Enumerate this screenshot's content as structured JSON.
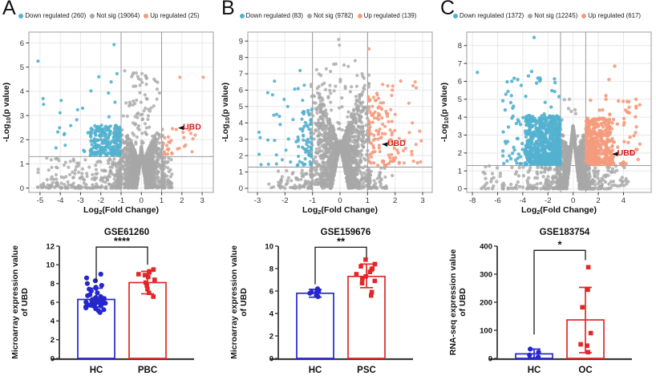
{
  "panels": [
    {
      "letter": "A"
    },
    {
      "letter": "B"
    },
    {
      "letter": "C"
    }
  ],
  "colors": {
    "down": "#53b1cf",
    "not_sig": "#a7a7a7",
    "up": "#f59b7d",
    "hc_bar": "#2626cf",
    "disease_bar": "#e12727",
    "annotation_red": "#d31f1f",
    "axis": "#333333",
    "grid": "#e8e8e8",
    "panel_border": "#9c9c9c",
    "threshold_line": "#8f8f8f",
    "bracket": "#1a1a1a"
  },
  "chart_data": [
    {
      "id": "volcano-A",
      "type": "scatter",
      "subtype": "volcano",
      "legend": [
        {
          "label": "Down regulated (260)",
          "count": 260,
          "color": "#53b1cf"
        },
        {
          "label": "Not sig (19064)",
          "count": 19064,
          "color": "#a7a7a7"
        },
        {
          "label": "Up regulated (25)",
          "count": 25,
          "color": "#f59b7d"
        }
      ],
      "xlabel": {
        "pre": "Log",
        "sub": "2",
        "post": "(Fold Change)"
      },
      "ylabel": {
        "pre": "-Log",
        "sub": "10",
        "post": "(p value)"
      },
      "xlim": [
        -5.55,
        3.55
      ],
      "ylim": [
        -0.18,
        6.45
      ],
      "xticks": [
        -5,
        -4,
        -3,
        -2,
        -1,
        0,
        1,
        2,
        3
      ],
      "yticks": [
        0,
        1,
        2,
        3,
        4,
        5,
        6
      ],
      "fc_threshold": [
        -1,
        1
      ],
      "p_threshold": 1.3,
      "annotation": {
        "text": "UBD",
        "point": [
          1.72,
          2.42
        ],
        "label_pos": [
          2.05,
          2.62
        ]
      },
      "seed": 7,
      "dot_r": 2.1,
      "render_hint": {
        "grayCentral": {
          "n": 1500,
          "sigma": 0.45,
          "clip": 1.04,
          "top": 2.7,
          "pow": 1.25,
          "notchH": 1.5,
          "notchW": 0.22,
          "tallP": 0.05,
          "tallMax": 4.85
        },
        "grayOuter": {
          "nL": 260,
          "spanL": 4.1,
          "nR": 80,
          "spanR": 0.5,
          "ymax": 1.25
        },
        "blueBlob": {
          "n": 240,
          "w": 1.5,
          "h": 1.25
        },
        "blueScatter": {
          "n": 26,
          "xmin": -4.9,
          "top": 4.6
        },
        "orangeBlob": {
          "n": 12,
          "w": 0.55,
          "h": 0.85
        },
        "orangeScatter": {
          "n": 9,
          "xmax": 3.1,
          "top": 2.7
        },
        "blueExtras": [
          [
            -5.1,
            5.25
          ],
          [
            -1.35,
            5.93
          ],
          [
            -4.85,
            3.7
          ],
          [
            -1.2,
            4.73
          ],
          [
            -2.1,
            4.6
          ],
          [
            -1.62,
            3.93
          ],
          [
            -1.3,
            3.55
          ],
          [
            -2.9,
            3.3
          ]
        ],
        "orangeExtras": [
          [
            1.9,
            4.58
          ],
          [
            3.05,
            4.58
          ],
          [
            1.72,
            2.42
          ],
          [
            2.35,
            2.4
          ],
          [
            1.35,
            1.9
          ],
          [
            1.78,
            1.62
          ],
          [
            2.12,
            1.72
          ],
          [
            1.15,
            2.08
          ],
          [
            1.5,
            1.45
          ],
          [
            2.5,
            1.5
          ]
        ],
        "grayExtras": [
          [
            -0.82,
            4.85
          ],
          [
            0.63,
            4.5
          ],
          [
            0.7,
            4.42
          ],
          [
            0.35,
            3.25
          ],
          [
            0.42,
            3.18
          ],
          [
            -0.55,
            3.45
          ],
          [
            -0.6,
            3.4
          ]
        ]
      }
    },
    {
      "id": "bar-A",
      "type": "bar",
      "title": "GSE61260",
      "sig": "****",
      "ylabel": [
        "Microarray expression value",
        "of UBD"
      ],
      "ymax": 12,
      "yticks": [
        0,
        2,
        4,
        6,
        8,
        10,
        12
      ],
      "groups": [
        {
          "label": "HC",
          "color": "#2626cf",
          "marker": "circle",
          "mean": 6.3,
          "err_lo": 5.5,
          "err_hi": 7.5,
          "points": [
            9.0,
            8.6,
            8.3,
            8.0,
            7.8,
            7.6,
            7.5,
            7.4,
            7.2,
            7.0,
            6.8,
            6.7,
            6.6,
            6.5,
            6.4,
            6.4,
            6.3,
            6.3,
            6.2,
            6.2,
            6.1,
            6.1,
            6.0,
            6.0,
            6.0,
            5.9,
            5.9,
            5.8,
            5.8,
            5.7,
            5.7,
            5.6,
            5.6,
            5.5,
            5.4,
            5.3,
            5.2,
            5.1,
            4.9
          ]
        },
        {
          "label": "PBC",
          "color": "#e12727",
          "marker": "square",
          "mean": 8.1,
          "err_lo": 6.9,
          "err_hi": 9.3,
          "points": [
            9.5,
            9.3,
            9.2,
            9.0,
            8.9,
            8.7,
            8.4,
            8.1,
            7.8,
            7.4,
            7.0,
            6.6
          ]
        }
      ],
      "bracket": {
        "y": 11.9,
        "legs": [
          8.1,
          10.0
        ]
      },
      "seed": 3
    },
    {
      "id": "volcano-B",
      "type": "scatter",
      "subtype": "volcano",
      "legend": [
        {
          "label": "Down regulated (83)",
          "count": 83,
          "color": "#53b1cf"
        },
        {
          "label": "Not sig (9782)",
          "count": 9782,
          "color": "#a7a7a7"
        },
        {
          "label": "Up regulated (139)",
          "count": 139,
          "color": "#f59b7d"
        }
      ],
      "xlabel": {
        "pre": "Log",
        "sub": "2",
        "post": "(Fold Change)"
      },
      "ylabel": {
        "pre": "-Log",
        "sub": "10",
        "post": "(p value)"
      },
      "xlim": [
        -3.35,
        3.35
      ],
      "ylim": [
        -0.25,
        9.55
      ],
      "xticks": [
        -3,
        -2,
        -1,
        0,
        1,
        2,
        3
      ],
      "yticks": [
        0,
        1,
        2,
        3,
        4,
        5,
        6,
        7,
        8,
        9
      ],
      "fc_threshold": [
        -1,
        1
      ],
      "p_threshold": 1.3,
      "annotation": {
        "text": "UBD",
        "point": [
          1.45,
          2.6
        ],
        "label_pos": [
          1.72,
          2.88
        ]
      },
      "seed": 11,
      "dot_r": 2.1,
      "render_hint": {
        "grayCentral": {
          "n": 1700,
          "sigma": 0.5,
          "clip": 1.05,
          "top": 7.0,
          "pow": 1.35,
          "notchH": 2.7,
          "notchW": 0.3,
          "tallP": 0.05,
          "tallMax": 7.8
        },
        "grayOuter": {
          "nL": 70,
          "spanL": 1.6,
          "nR": 60,
          "spanR": 0.9,
          "ymax": 1.25
        },
        "blueBlob": {
          "n": 55,
          "w": 0.5,
          "h": 3.6
        },
        "blueScatter": {
          "n": 28,
          "xmin": -2.95,
          "top": 6.6
        },
        "orangeBlob": {
          "n": 95,
          "w": 1.0,
          "h": 4.5
        },
        "orangeScatter": {
          "n": 32,
          "xmax": 2.95,
          "top": 6.9
        },
        "blueExtras": [
          [
            -2.38,
            6.55
          ],
          [
            -1.45,
            7.2
          ],
          [
            -2.9,
            3.1
          ],
          [
            -2.62,
            2.95
          ],
          [
            -1.9,
            5.0
          ],
          [
            -2.2,
            4.4
          ],
          [
            -1.3,
            6.3
          ]
        ],
        "orangeExtras": [
          [
            1.05,
            8.52
          ],
          [
            2.73,
            6.5
          ],
          [
            2.15,
            3.05
          ],
          [
            2.95,
            2.9
          ],
          [
            1.42,
            2.62
          ],
          [
            2.3,
            2.3
          ],
          [
            2.6,
            2.25
          ],
          [
            1.9,
            6.0
          ],
          [
            1.55,
            6.35
          ]
        ],
        "grayExtras": [
          [
            -0.05,
            9.1
          ],
          [
            -0.02,
            8.75
          ],
          [
            0.55,
            7.8
          ],
          [
            -0.5,
            7.3
          ],
          [
            0.3,
            7.45
          ],
          [
            -0.85,
            7.25
          ],
          [
            0.8,
            7.0
          ],
          [
            -0.15,
            7.6
          ]
        ]
      }
    },
    {
      "id": "bar-B",
      "type": "bar",
      "title": "GSE159676",
      "sig": "**",
      "ylabel": [
        "Microarray expression value",
        "of UBD"
      ],
      "ymax": 10,
      "yticks": [
        0,
        2,
        4,
        6,
        8,
        10
      ],
      "groups": [
        {
          "label": "HC",
          "color": "#2626cf",
          "marker": "circle",
          "mean": 5.8,
          "err_lo": 5.45,
          "err_hi": 6.15,
          "points": [
            6.2,
            6.0,
            5.9,
            5.8,
            5.8,
            5.6,
            5.5
          ]
        },
        {
          "label": "PSC",
          "color": "#e12727",
          "marker": "square",
          "mean": 7.3,
          "err_lo": 6.3,
          "err_hi": 8.4,
          "points": [
            8.8,
            8.4,
            8.2,
            8.0,
            7.9,
            7.7,
            7.5,
            7.3,
            7.1,
            6.9,
            6.7,
            5.9,
            5.6
          ]
        }
      ],
      "bracket": {
        "y": 9.9,
        "legs": [
          6.6,
          9.0
        ]
      },
      "seed": 5
    },
    {
      "id": "volcano-C",
      "type": "scatter",
      "subtype": "volcano",
      "legend": [
        {
          "label": "Down regulated (1372)",
          "count": 1372,
          "color": "#53b1cf"
        },
        {
          "label": "Not sig (12245)",
          "count": 12245,
          "color": "#a7a7a7"
        },
        {
          "label": "Up regulated (617)",
          "count": 617,
          "color": "#f59b7d"
        }
      ],
      "xlabel": {
        "pre": "Log",
        "sub": "2",
        "post": "(Fold Change)"
      },
      "ylabel": {
        "pre": "-Log",
        "sub": "10",
        "post": "(p value)"
      },
      "xlim": [
        -8.45,
        6.2
      ],
      "ylim": [
        -0.2,
        8.75
      ],
      "xticks": [
        -8,
        -6,
        -4,
        -2,
        0,
        2,
        4
      ],
      "yticks": [
        0,
        1,
        2,
        3,
        4,
        5,
        6,
        7,
        8
      ],
      "fc_threshold": [
        -1,
        1
      ],
      "p_threshold": 1.3,
      "annotation": {
        "text": "UBD",
        "point": [
          2.95,
          1.85
        ],
        "label_pos": [
          3.5,
          2.12
        ]
      },
      "seed": 23,
      "dot_r": 2.2,
      "render_hint": {
        "grayCentral": {
          "n": 1500,
          "sigma": 0.55,
          "clip": 1.28,
          "top": 3.8,
          "pow": 1.3,
          "notchH": 3.3,
          "notchW": 0.5,
          "tallP": 0.012,
          "tallMax": 5.0
        },
        "grayOuter": {
          "nL": 160,
          "spanL": 6.3,
          "nR": 120,
          "spanR": 3.4,
          "ymax": 1.35
        },
        "blueBlob": {
          "n": 620,
          "w": 2.8,
          "h": 2.75
        },
        "blueScatter": {
          "n": 110,
          "xmin": -5.6,
          "top": 6.2
        },
        "orangeBlob": {
          "n": 400,
          "w": 2.1,
          "h": 2.6
        },
        "orangeScatter": {
          "n": 70,
          "xmax": 5.3,
          "top": 5.0
        },
        "blueExtras": [
          [
            -7.6,
            6.5
          ],
          [
            -3.1,
            8.45
          ],
          [
            -4.4,
            6.1
          ],
          [
            -3.55,
            6.3
          ],
          [
            -2.6,
            6.1
          ],
          [
            -3.3,
            6.55
          ],
          [
            -2.9,
            5.9
          ],
          [
            -4.9,
            5.2
          ],
          [
            -5.4,
            4.4
          ]
        ],
        "orangeExtras": [
          [
            3.3,
            6.85
          ],
          [
            2.85,
            6.1
          ],
          [
            5.3,
            2.5
          ],
          [
            4.6,
            2.1
          ],
          [
            2.6,
            5.2
          ],
          [
            3.6,
            4.9
          ],
          [
            4.3,
            4.3
          ],
          [
            3.2,
            1.8
          ],
          [
            4.0,
            1.5
          ],
          [
            5.0,
            4.6
          ]
        ],
        "grayExtras": [
          [
            -0.3,
            5.0
          ],
          [
            0.2,
            4.2
          ]
        ]
      }
    },
    {
      "id": "bar-C",
      "type": "bar",
      "title": "GSE183754",
      "sig": "*",
      "ylabel": [
        "RNA-seq expression value",
        "of UBD"
      ],
      "ymax": 400,
      "yticks": [
        0,
        100,
        200,
        300,
        400
      ],
      "groups": [
        {
          "label": "HC",
          "color": "#2626cf",
          "marker": "circle",
          "mean": 16,
          "err_lo": 2,
          "err_hi": 33,
          "points": [
            33,
            22,
            12,
            5
          ]
        },
        {
          "label": "OC",
          "color": "#e12727",
          "marker": "square",
          "mean": 137,
          "err_lo": 20,
          "err_hi": 253,
          "points": [
            325,
            245,
            182,
            90,
            50,
            45,
            22
          ]
        }
      ],
      "bracket": {
        "y": 385,
        "legs": [
          85,
          350
        ]
      },
      "seed": 9
    }
  ]
}
